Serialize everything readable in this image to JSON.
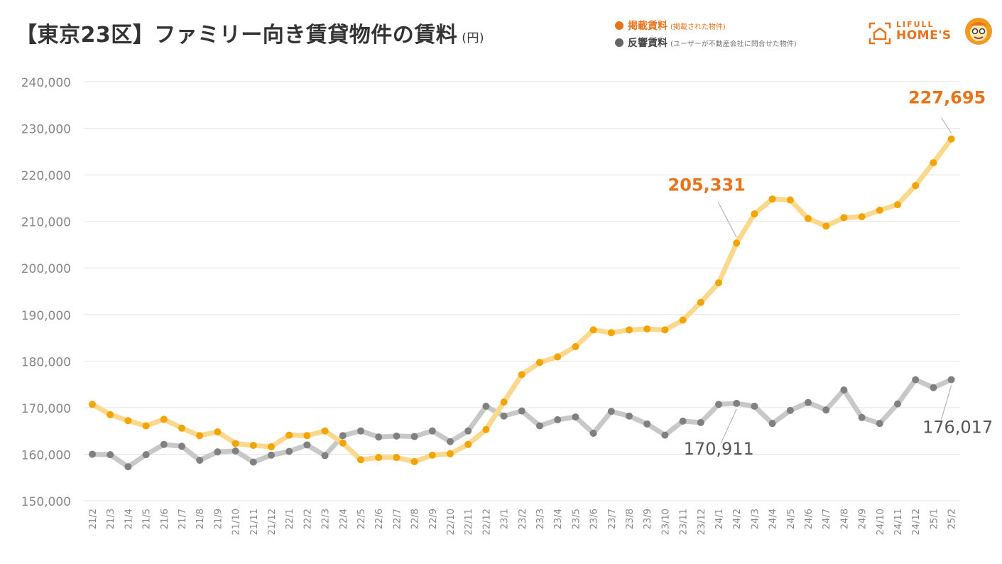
{
  "header": {
    "title": "【東京23区】ファミリー向き賃貸物件の賃料",
    "unit": "(円)"
  },
  "legend": [
    {
      "label": "掲載賃料",
      "note": "(掲載された物件)",
      "color": "#e8731a"
    },
    {
      "label": "反響賃料",
      "note": "(ユーザーが不動産会社に問合せた物件)",
      "color": "#666666"
    }
  ],
  "logo": {
    "line1": "LIFULL",
    "line2": "HOME'S",
    "icon": "house-icon",
    "mascot": "mascot-icon"
  },
  "colors": {
    "listing": "#f2a400",
    "listing_band": "#fbd88c",
    "inquiry": "#808080",
    "inquiry_band": "#c8c8c8",
    "label_orange": "#e8731a",
    "label_gray": "#555555",
    "grid": "#e6e6e6",
    "axis_text": "#888888"
  },
  "chart_data": {
    "type": "line",
    "title": "【東京23区】ファミリー向き賃貸物件の賃料",
    "xlabel": "",
    "ylabel": "(円)",
    "ylim": [
      150000,
      240000
    ],
    "yticks": [
      150000,
      160000,
      170000,
      180000,
      190000,
      200000,
      210000,
      220000,
      230000,
      240000
    ],
    "ytick_labels": [
      "150,000",
      "160,000",
      "170,000",
      "180,000",
      "190,000",
      "200,000",
      "210,000",
      "220,000",
      "230,000",
      "240,000"
    ],
    "grid": true,
    "legend_position": "top-right",
    "categories": [
      "21/2",
      "21/3",
      "21/4",
      "21/5",
      "21/6",
      "21/7",
      "21/8",
      "21/9",
      "21/10",
      "21/11",
      "21/12",
      "22/1",
      "22/2",
      "22/3",
      "22/4",
      "22/5",
      "22/6",
      "22/7",
      "22/8",
      "22/9",
      "22/10",
      "22/11",
      "22/12",
      "23/1",
      "23/2",
      "23/3",
      "23/4",
      "23/5",
      "23/6",
      "23/7",
      "23/8",
      "23/9",
      "23/10",
      "23/11",
      "23/12",
      "24/1",
      "24/2",
      "24/3",
      "24/4",
      "24/5",
      "24/6",
      "24/7",
      "24/8",
      "24/9",
      "24/10",
      "24/11",
      "24/12",
      "25/1",
      "25/2"
    ],
    "series": [
      {
        "name": "掲載賃料",
        "values": [
          170700,
          168500,
          167200,
          166100,
          167500,
          165600,
          164000,
          164800,
          162300,
          161900,
          161600,
          164100,
          164000,
          165000,
          162400,
          158800,
          159300,
          159300,
          158400,
          159800,
          160100,
          162100,
          165300,
          171200,
          177100,
          179700,
          180900,
          183100,
          186700,
          186100,
          186700,
          186900,
          186700,
          188800,
          192600,
          196800,
          205331,
          211600,
          214800,
          214600,
          210600,
          209000,
          210800,
          211000,
          212400,
          213600,
          217700,
          222600,
          227695
        ]
      },
      {
        "name": "反響賃料",
        "values": [
          160000,
          159900,
          157300,
          159900,
          162100,
          161700,
          158700,
          160500,
          160700,
          158300,
          159800,
          160600,
          162000,
          159700,
          164000,
          165000,
          163700,
          163900,
          163800,
          165000,
          162700,
          165000,
          170300,
          168200,
          169300,
          166100,
          167400,
          168000,
          164500,
          169200,
          168200,
          166500,
          164100,
          167100,
          166800,
          170700,
          170911,
          170300,
          166600,
          169400,
          171100,
          169500,
          173800,
          167900,
          166600,
          170800,
          176000,
          174300,
          176017
        ]
      }
    ],
    "annotations": [
      {
        "label": "227,695",
        "series": 0,
        "index": 48,
        "color": "#e8731a"
      },
      {
        "label": "205,331",
        "series": 0,
        "index": 36,
        "color": "#e8731a"
      },
      {
        "label": "170,911",
        "series": 1,
        "index": 36,
        "color": "#555555"
      },
      {
        "label": "176,017",
        "series": 1,
        "index": 48,
        "color": "#555555"
      }
    ]
  }
}
